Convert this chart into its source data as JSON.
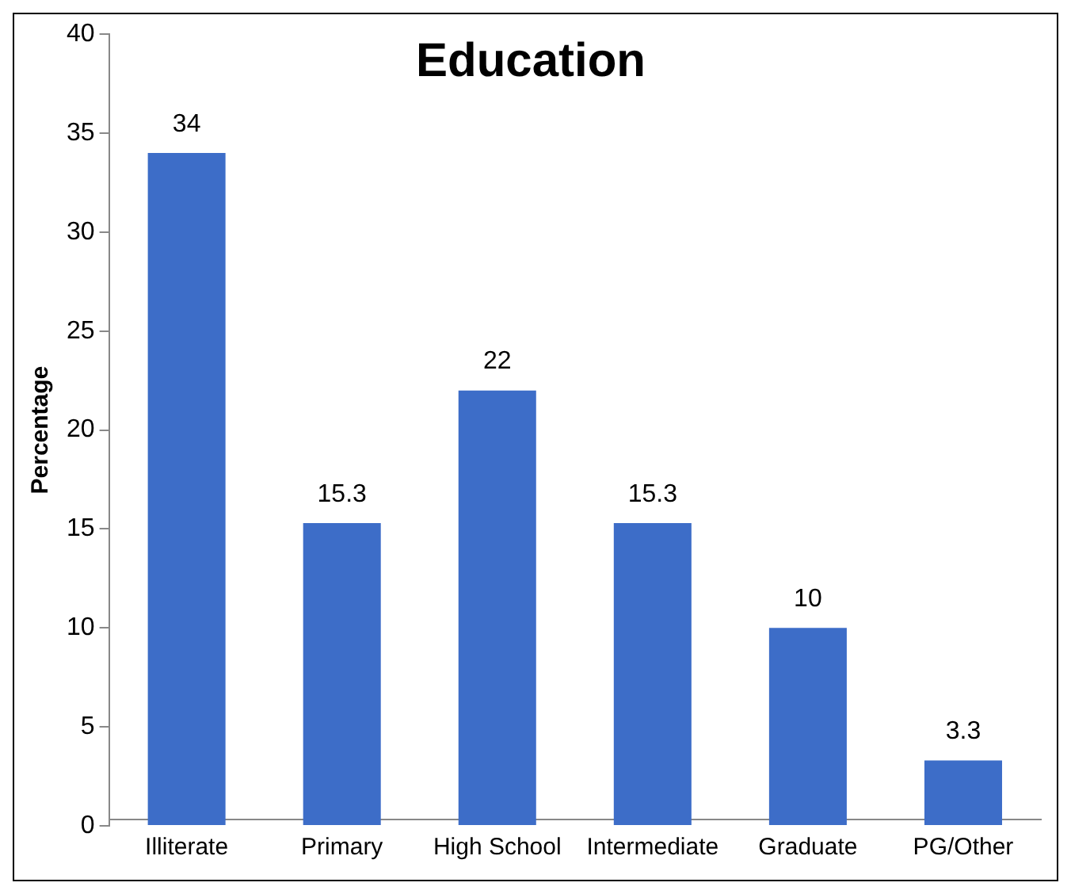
{
  "chart_data": {
    "type": "bar",
    "title": "Education",
    "ylabel": "Percentage",
    "categories": [
      "Illiterate",
      "Primary",
      "High School",
      "Intermediate",
      "Graduate",
      "PG/Other"
    ],
    "values": [
      34,
      15.3,
      22,
      15.3,
      10,
      3.3
    ],
    "color": "#3d6dc8",
    "ylim": [
      0,
      40
    ],
    "yticks": [
      0,
      5,
      10,
      15,
      20,
      25,
      30,
      35,
      40
    ],
    "grid": false,
    "legend": false,
    "data_labels": true
  }
}
